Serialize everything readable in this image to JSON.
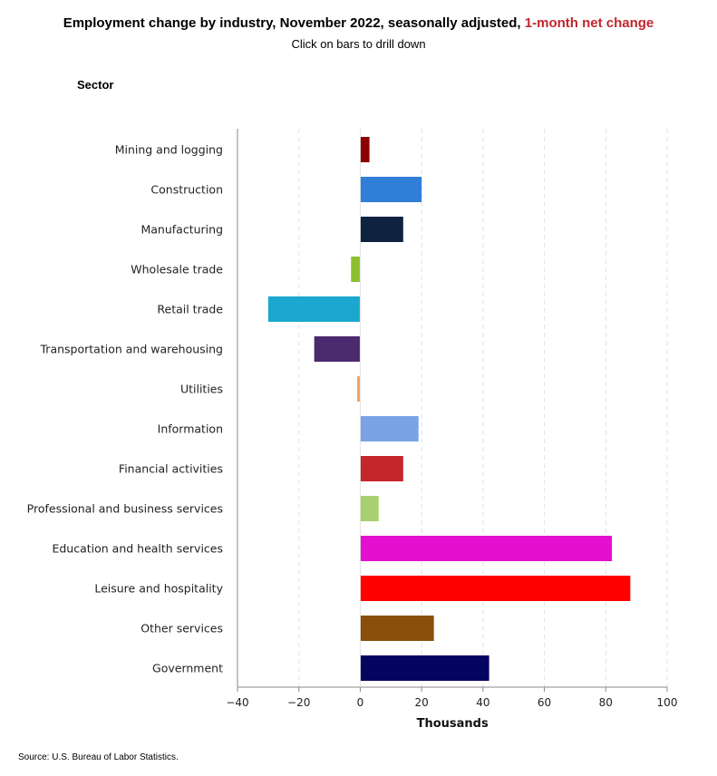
{
  "header": {
    "title_main": "Employment change by industry, November 2022, seasonally adjusted,",
    "title_accent": "1-month net change",
    "subtitle": "Click on bars to drill down",
    "sector_heading": "Sector"
  },
  "footer": {
    "source": "Source: U.S. Bureau of Labor Statistics."
  },
  "colors": {
    "accent": "#c0272d",
    "grid": "#e2e2e2",
    "axis": "#888888"
  },
  "chart_data": {
    "type": "bar",
    "orientation": "horizontal",
    "title": "Employment change by industry, November 2022, seasonally adjusted, 1-month net change",
    "subtitle": "Click on bars to drill down",
    "ylabel": "Sector",
    "xlabel": "Thousands",
    "xlim": [
      -40,
      100
    ],
    "xticks": [
      -40,
      -20,
      0,
      20,
      40,
      60,
      80,
      100
    ],
    "xtick_labels": [
      "−40",
      "−20",
      "0",
      "20",
      "40",
      "60",
      "80",
      "100"
    ],
    "grid": true,
    "categories": [
      "Mining and logging",
      "Construction",
      "Manufacturing",
      "Wholesale trade",
      "Retail trade",
      "Transportation and warehousing",
      "Utilities",
      "Information",
      "Financial activities",
      "Professional and business services",
      "Education and health services",
      "Leisure and hospitality",
      "Other services",
      "Government"
    ],
    "values": [
      3,
      20,
      14,
      -3,
      -30,
      -15,
      -1,
      19,
      14,
      6,
      82,
      88,
      24,
      42
    ],
    "bar_colors": [
      "#8b0000",
      "#2f7fd8",
      "#0f2340",
      "#8cbf2e",
      "#1aa8cf",
      "#4b2a6e",
      "#f4a060",
      "#7aa3e5",
      "#c3262b",
      "#a8d070",
      "#e410d0",
      "#ff0000",
      "#8a4f0b",
      "#050560"
    ]
  }
}
